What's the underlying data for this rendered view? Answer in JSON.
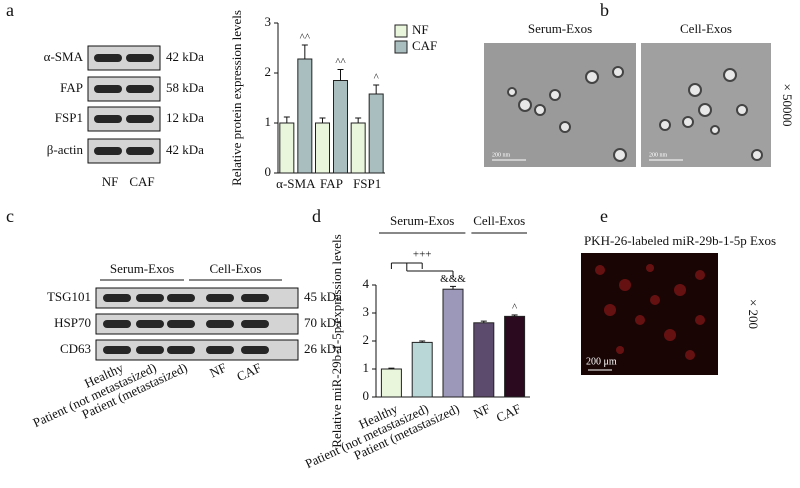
{
  "figure": {
    "panel_labels": [
      "a",
      "b",
      "c",
      "d",
      "e"
    ],
    "a": {
      "rows": [
        {
          "name": "α-SMA",
          "kda": "42 kDa"
        },
        {
          "name": "FAP",
          "kda": "58 kDa"
        },
        {
          "name": "FSP1",
          "kda": "12 kDa"
        },
        {
          "name": "β-actin",
          "kda": "42 kDa"
        }
      ],
      "lanes": [
        "NF",
        "CAF"
      ]
    },
    "b": {
      "images": [
        "Serum-Exos",
        "Cell-Exos"
      ],
      "magnification": "× 50000",
      "scale": "200 nm"
    },
    "c": {
      "groups": [
        "Serum-Exos",
        "Cell-Exos"
      ],
      "rows": [
        {
          "name": "TSG101",
          "kda": "45 kDa"
        },
        {
          "name": "HSP70",
          "kda": "70 kDa"
        },
        {
          "name": "CD63",
          "kda": "26 kDa"
        }
      ],
      "lanes": [
        "Healthy",
        "Patient (not metastasized)",
        "Patient (metastasized)",
        "NF",
        "CAF"
      ]
    },
    "e": {
      "title": "PKH-26-labeled miR-29b-1-5p Exos",
      "magnification": "× 200",
      "scale": "200 μm"
    }
  },
  "chart_data": [
    {
      "type": "bar",
      "y_label": "Relative protein expression levels",
      "categories": [
        "α-SMA",
        "FAP",
        "FSP1"
      ],
      "series": [
        {
          "name": "NF",
          "color": "#eaf6dc",
          "values": [
            1,
            1,
            1
          ],
          "errors": [
            0.12,
            0.1,
            0.1
          ]
        },
        {
          "name": "CAF",
          "color": "#a9bfbf",
          "values": [
            2.28,
            1.85,
            1.58
          ],
          "errors": [
            0.28,
            0.22,
            0.18
          ],
          "annotations": [
            "^^",
            "^^",
            "^"
          ]
        }
      ],
      "ylim": [
        0,
        3
      ],
      "yticks": [
        0,
        1,
        2,
        3
      ],
      "legend": "top-right"
    },
    {
      "type": "bar",
      "y_label": "Relative miR-29b-1-5p expression levels",
      "categories": [
        "Healthy",
        "Patient (not metastasized)",
        "Patient (metastasized)",
        "NF",
        "CAF"
      ],
      "series": [
        {
          "colors": [
            "#eaf6dc",
            "#b9d7d7",
            "#9c98ba",
            "#5d4b6d",
            "#2b0a1f"
          ],
          "values": [
            1,
            1.95,
            3.85,
            2.65,
            2.88
          ],
          "errors": [
            0.03,
            0.05,
            0.1,
            0.06,
            0.05
          ],
          "annotations": [
            null,
            null,
            "&&&",
            null,
            "^"
          ]
        }
      ],
      "comparison": "+++",
      "groups": [
        "Serum-Exos",
        "Cell-Exos"
      ],
      "ylim": [
        0,
        4
      ],
      "yticks": [
        0,
        1,
        2,
        3,
        4
      ]
    }
  ]
}
